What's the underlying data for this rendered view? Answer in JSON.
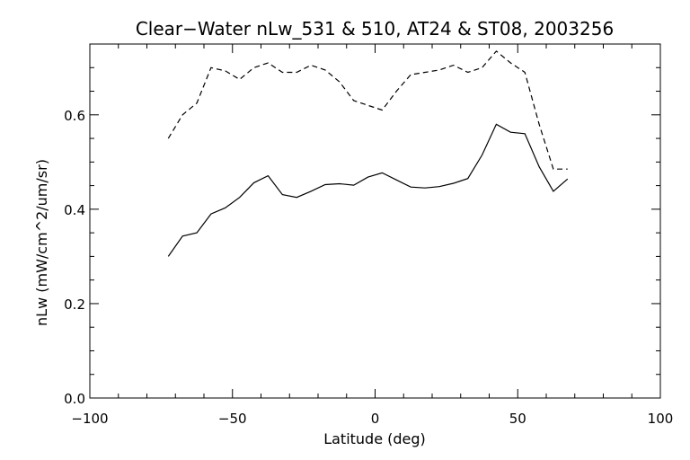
{
  "chart_data": {
    "type": "line",
    "title": "Clear−Water nLw_531 & 510, AT24 & ST08, 2003256",
    "xlabel": "Latitude (deg)",
    "ylabel": "nLw (mW/cm^2/um/sr)",
    "xlim": [
      -100,
      100
    ],
    "ylim": [
      0.0,
      0.75
    ],
    "xticks": [
      -100,
      -50,
      0,
      50,
      100
    ],
    "xtick_labels": [
      "−100",
      "−50",
      "0",
      "50",
      "100"
    ],
    "yticks": [
      0.0,
      0.2,
      0.4,
      0.6
    ],
    "ytick_labels": [
      "0.0",
      "0.2",
      "0.4",
      "0.6"
    ],
    "grid": false,
    "series": [
      {
        "style": "solid",
        "color": "#000000",
        "x": [
          -72.5,
          -67.5,
          -62.5,
          -57.5,
          -52.5,
          -47.5,
          -42.5,
          -37.5,
          -32.5,
          -27.5,
          -22.5,
          -17.5,
          -12.5,
          -7.5,
          -2.5,
          2.5,
          7.5,
          12.5,
          17.5,
          22.5,
          27.5,
          32.5,
          37.5,
          42.5,
          47.5,
          52.5,
          57.5,
          62.5,
          67.5
        ],
        "y": [
          0.3,
          0.343,
          0.35,
          0.39,
          0.403,
          0.425,
          0.456,
          0.471,
          0.431,
          0.425,
          0.438,
          0.452,
          0.454,
          0.451,
          0.468,
          0.477,
          0.462,
          0.447,
          0.445,
          0.448,
          0.455,
          0.465,
          0.515,
          0.58,
          0.563,
          0.56,
          0.49,
          0.438,
          0.464
        ]
      },
      {
        "style": "dashed",
        "color": "#000000",
        "x": [
          -72.5,
          -67.5,
          -62.5,
          -57.5,
          -52.5,
          -47.5,
          -42.5,
          -37.5,
          -32.5,
          -27.5,
          -22.5,
          -17.5,
          -12.5,
          -7.5,
          -2.5,
          2.5,
          7.5,
          12.5,
          17.5,
          22.5,
          27.5,
          32.5,
          37.5,
          42.5,
          47.5,
          52.5,
          57.5,
          62.5,
          67.5
        ],
        "y": [
          0.55,
          0.6,
          0.625,
          0.7,
          0.693,
          0.675,
          0.7,
          0.71,
          0.69,
          0.69,
          0.705,
          0.695,
          0.67,
          0.63,
          0.62,
          0.61,
          0.65,
          0.685,
          0.69,
          0.695,
          0.705,
          0.69,
          0.7,
          0.735,
          0.71,
          0.69,
          0.58,
          0.485,
          0.485
        ]
      }
    ]
  }
}
